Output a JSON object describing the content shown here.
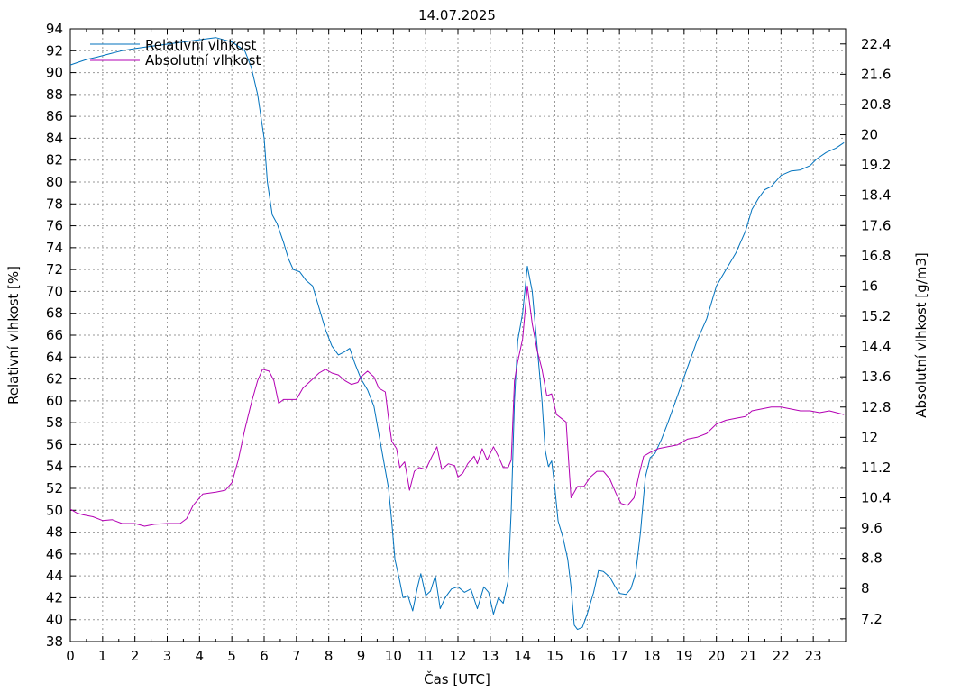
{
  "chart_data": {
    "type": "line",
    "title": "14.07.2025",
    "xlabel": "Čas [UTC]",
    "ylabel_left": "Relativní vlhkost [%]",
    "ylabel_right": "Absolutní vlhkost [g/m3]",
    "xlim": [
      0,
      24
    ],
    "ylim_left": [
      38,
      94
    ],
    "ylim_right": [
      6.6,
      22.8
    ],
    "x_ticks": [
      "0",
      "1",
      "2",
      "3",
      "4",
      "5",
      "6",
      "7",
      "8",
      "9",
      "10",
      "11",
      "12",
      "13",
      "14",
      "15",
      "16",
      "17",
      "18",
      "19",
      "20",
      "21",
      "22",
      "23"
    ],
    "y_ticks_left": [
      "38",
      "40",
      "42",
      "44",
      "46",
      "48",
      "50",
      "52",
      "54",
      "56",
      "58",
      "60",
      "62",
      "64",
      "66",
      "68",
      "70",
      "72",
      "74",
      "76",
      "78",
      "80",
      "82",
      "84",
      "86",
      "88",
      "90",
      "92",
      "94"
    ],
    "y_ticks_right": [
      "7.2",
      "8",
      "8.8",
      "9.6",
      "10.4",
      "11.2",
      "12",
      "12.8",
      "13.6",
      "14.4",
      "15.2",
      "16",
      "16.8",
      "17.6",
      "18.4",
      "19.2",
      "20",
      "20.8",
      "21.6",
      "22.4"
    ],
    "grid": true,
    "legend_position": "top-left",
    "series": [
      {
        "name": "Relativní vlhkost",
        "axis": "left",
        "color": "#0072bd",
        "points": [
          [
            0,
            90.7
          ],
          [
            0.2,
            90.9
          ],
          [
            0.5,
            91.2
          ],
          [
            0.8,
            91.4
          ],
          [
            1.2,
            91.7
          ],
          [
            1.6,
            92.0
          ],
          [
            2,
            92.2
          ],
          [
            2.5,
            92.4
          ],
          [
            3,
            92.6
          ],
          [
            3.5,
            92.8
          ],
          [
            4,
            93.0
          ],
          [
            4.5,
            93.2
          ],
          [
            5,
            92.8
          ],
          [
            5.4,
            92.0
          ],
          [
            5.6,
            90.5
          ],
          [
            5.8,
            88
          ],
          [
            6.0,
            84
          ],
          [
            6.1,
            80
          ],
          [
            6.25,
            77
          ],
          [
            6.4,
            76.2
          ],
          [
            6.6,
            74.5
          ],
          [
            6.75,
            73
          ],
          [
            6.9,
            72
          ],
          [
            7.1,
            71.8
          ],
          [
            7.3,
            71
          ],
          [
            7.5,
            70.5
          ],
          [
            7.7,
            68.5
          ],
          [
            7.9,
            66.5
          ],
          [
            8.1,
            65
          ],
          [
            8.3,
            64.2
          ],
          [
            8.5,
            64.5
          ],
          [
            8.65,
            64.8
          ],
          [
            8.8,
            63.5
          ],
          [
            9.0,
            62
          ],
          [
            9.2,
            61
          ],
          [
            9.4,
            59.5
          ],
          [
            9.55,
            57
          ],
          [
            9.7,
            54.5
          ],
          [
            9.85,
            52
          ],
          [
            9.95,
            49
          ],
          [
            10.05,
            45.5
          ],
          [
            10.2,
            43.5
          ],
          [
            10.3,
            42
          ],
          [
            10.45,
            42.2
          ],
          [
            10.6,
            40.8
          ],
          [
            10.75,
            43
          ],
          [
            10.85,
            44.2
          ],
          [
            11.0,
            42.2
          ],
          [
            11.15,
            42.6
          ],
          [
            11.3,
            44
          ],
          [
            11.45,
            41
          ],
          [
            11.6,
            42
          ],
          [
            11.8,
            42.8
          ],
          [
            12.0,
            43
          ],
          [
            12.2,
            42.5
          ],
          [
            12.4,
            42.8
          ],
          [
            12.6,
            41
          ],
          [
            12.8,
            43
          ],
          [
            12.95,
            42.5
          ],
          [
            13.1,
            40.5
          ],
          [
            13.25,
            42
          ],
          [
            13.4,
            41.5
          ],
          [
            13.55,
            43.5
          ],
          [
            13.65,
            50
          ],
          [
            13.75,
            60
          ],
          [
            13.85,
            65.5
          ],
          [
            14.0,
            68
          ],
          [
            14.15,
            72.3
          ],
          [
            14.3,
            70
          ],
          [
            14.45,
            65
          ],
          [
            14.6,
            60
          ],
          [
            14.7,
            55.5
          ],
          [
            14.8,
            54
          ],
          [
            14.9,
            54.5
          ],
          [
            15.0,
            52
          ],
          [
            15.1,
            49
          ],
          [
            15.25,
            47.5
          ],
          [
            15.4,
            45.5
          ],
          [
            15.5,
            43
          ],
          [
            15.6,
            39.5
          ],
          [
            15.7,
            39.1
          ],
          [
            15.85,
            39.3
          ],
          [
            16.0,
            40.5
          ],
          [
            16.2,
            42.5
          ],
          [
            16.35,
            44.5
          ],
          [
            16.5,
            44.4
          ],
          [
            16.7,
            43.9
          ],
          [
            16.85,
            43.1
          ],
          [
            17.0,
            42.4
          ],
          [
            17.2,
            42.3
          ],
          [
            17.35,
            42.8
          ],
          [
            17.5,
            44.2
          ],
          [
            17.65,
            48
          ],
          [
            17.8,
            53
          ],
          [
            17.95,
            54.8
          ],
          [
            18.1,
            55.2
          ],
          [
            18.3,
            56.5
          ],
          [
            18.5,
            58
          ],
          [
            18.8,
            60.5
          ],
          [
            19.1,
            63
          ],
          [
            19.4,
            65.5
          ],
          [
            19.7,
            67.5
          ],
          [
            20.0,
            70.5
          ],
          [
            20.3,
            72
          ],
          [
            20.6,
            73.5
          ],
          [
            20.9,
            75.5
          ],
          [
            21.1,
            77.5
          ],
          [
            21.3,
            78.5
          ],
          [
            21.5,
            79.3
          ],
          [
            21.7,
            79.6
          ],
          [
            22.0,
            80.6
          ],
          [
            22.3,
            81
          ],
          [
            22.6,
            81.1
          ],
          [
            22.9,
            81.5
          ],
          [
            23.1,
            82.1
          ],
          [
            23.4,
            82.7
          ],
          [
            23.7,
            83.1
          ],
          [
            23.95,
            83.6
          ]
        ]
      },
      {
        "name": "Absolutní vlhkost",
        "axis": "right",
        "color": "#b300b3",
        "points": [
          [
            0,
            10.1
          ],
          [
            0.2,
            10.0
          ],
          [
            0.4,
            9.95
          ],
          [
            0.7,
            9.9
          ],
          [
            1.0,
            9.8
          ],
          [
            1.3,
            9.82
          ],
          [
            1.6,
            9.72
          ],
          [
            2.0,
            9.72
          ],
          [
            2.3,
            9.65
          ],
          [
            2.6,
            9.7
          ],
          [
            3.0,
            9.72
          ],
          [
            3.4,
            9.72
          ],
          [
            3.6,
            9.85
          ],
          [
            3.8,
            10.2
          ],
          [
            4.1,
            10.5
          ],
          [
            4.5,
            10.55
          ],
          [
            4.8,
            10.6
          ],
          [
            5.0,
            10.8
          ],
          [
            5.2,
            11.4
          ],
          [
            5.4,
            12.2
          ],
          [
            5.6,
            12.9
          ],
          [
            5.8,
            13.5
          ],
          [
            5.95,
            13.8
          ],
          [
            6.15,
            13.75
          ],
          [
            6.3,
            13.5
          ],
          [
            6.45,
            12.9
          ],
          [
            6.6,
            13.0
          ],
          [
            6.8,
            13.0
          ],
          [
            7.0,
            13.0
          ],
          [
            7.2,
            13.3
          ],
          [
            7.45,
            13.5
          ],
          [
            7.7,
            13.7
          ],
          [
            7.9,
            13.8
          ],
          [
            8.1,
            13.7
          ],
          [
            8.3,
            13.65
          ],
          [
            8.5,
            13.5
          ],
          [
            8.7,
            13.4
          ],
          [
            8.9,
            13.45
          ],
          [
            9.0,
            13.6
          ],
          [
            9.2,
            13.75
          ],
          [
            9.4,
            13.6
          ],
          [
            9.55,
            13.3
          ],
          [
            9.75,
            13.2
          ],
          [
            9.85,
            12.5
          ],
          [
            9.95,
            11.9
          ],
          [
            10.1,
            11.7
          ],
          [
            10.2,
            11.2
          ],
          [
            10.35,
            11.35
          ],
          [
            10.5,
            10.6
          ],
          [
            10.65,
            11.1
          ],
          [
            10.8,
            11.2
          ],
          [
            11.0,
            11.15
          ],
          [
            11.2,
            11.5
          ],
          [
            11.35,
            11.75
          ],
          [
            11.5,
            11.15
          ],
          [
            11.7,
            11.3
          ],
          [
            11.9,
            11.25
          ],
          [
            12.0,
            10.95
          ],
          [
            12.15,
            11.05
          ],
          [
            12.3,
            11.3
          ],
          [
            12.5,
            11.5
          ],
          [
            12.6,
            11.3
          ],
          [
            12.75,
            11.7
          ],
          [
            12.9,
            11.4
          ],
          [
            13.1,
            11.75
          ],
          [
            13.25,
            11.5
          ],
          [
            13.4,
            11.2
          ],
          [
            13.55,
            11.2
          ],
          [
            13.65,
            11.4
          ],
          [
            13.75,
            13.5
          ],
          [
            13.85,
            14.0
          ],
          [
            14.0,
            14.6
          ],
          [
            14.15,
            16.0
          ],
          [
            14.3,
            15.0
          ],
          [
            14.45,
            14.3
          ],
          [
            14.6,
            13.8
          ],
          [
            14.75,
            13.1
          ],
          [
            14.9,
            13.15
          ],
          [
            15.05,
            12.6
          ],
          [
            15.2,
            12.5
          ],
          [
            15.35,
            12.4
          ],
          [
            15.5,
            10.4
          ],
          [
            15.7,
            10.7
          ],
          [
            15.9,
            10.7
          ],
          [
            16.1,
            10.95
          ],
          [
            16.3,
            11.1
          ],
          [
            16.5,
            11.1
          ],
          [
            16.7,
            10.9
          ],
          [
            16.9,
            10.5
          ],
          [
            17.05,
            10.25
          ],
          [
            17.25,
            10.2
          ],
          [
            17.45,
            10.4
          ],
          [
            17.6,
            11.0
          ],
          [
            17.75,
            11.5
          ],
          [
            17.95,
            11.6
          ],
          [
            18.2,
            11.7
          ],
          [
            18.5,
            11.75
          ],
          [
            18.8,
            11.8
          ],
          [
            19.1,
            11.95
          ],
          [
            19.4,
            12.0
          ],
          [
            19.7,
            12.1
          ],
          [
            20.0,
            12.35
          ],
          [
            20.3,
            12.45
          ],
          [
            20.6,
            12.5
          ],
          [
            20.9,
            12.55
          ],
          [
            21.1,
            12.7
          ],
          [
            21.4,
            12.75
          ],
          [
            21.7,
            12.8
          ],
          [
            22.0,
            12.8
          ],
          [
            22.3,
            12.75
          ],
          [
            22.6,
            12.7
          ],
          [
            22.9,
            12.7
          ],
          [
            23.2,
            12.65
          ],
          [
            23.5,
            12.7
          ],
          [
            23.95,
            12.6
          ]
        ]
      }
    ]
  }
}
